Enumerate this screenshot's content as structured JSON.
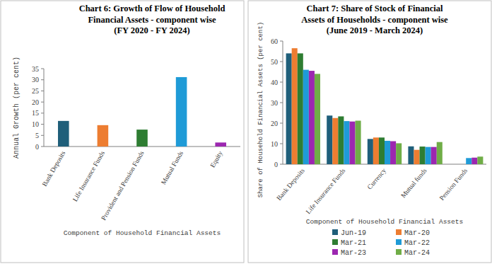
{
  "chart_data": [
    {
      "type": "bar",
      "title": "Chart 6: Growth of Flow of Household\nFinancial Assets - component wise\n(FY 2020 - FY 2024)",
      "x_label": "Component of Household Financial Assets",
      "y_label": "Annual Growth (per cent)",
      "categories": [
        "Bank Deposits",
        "Life Insurance Funds",
        "Provident and Pension Funds",
        "Mutual Funds",
        "Equity"
      ],
      "values": [
        11.5,
        9.6,
        7.6,
        31.2,
        1.8
      ],
      "colors": [
        "#1f5f7a",
        "#ed7d31",
        "#2e7d32",
        "#1f9bd7",
        "#9c27b0"
      ],
      "ylim": [
        0,
        35
      ],
      "yticks": [
        0,
        5,
        10,
        15,
        20,
        25,
        30,
        35
      ],
      "grid": false
    },
    {
      "type": "bar",
      "title": "Chart 7: Share of Stock of Financial\nAssets of Households - component wise\n(June 2019 - March 2024)",
      "x_label": "Component of Household Financial Assets",
      "y_label": "Share of Household Financial Assets (per cent)",
      "categories": [
        "Bank Deposits",
        "Life Insurance Funds",
        "Currency",
        "Mutual funds",
        "Pension Funds"
      ],
      "series": [
        {
          "name": "Jun-19",
          "color": "#1f5f7a",
          "values": [
            54,
            23.7,
            12.3,
            8.7,
            null
          ]
        },
        {
          "name": "Mar-20",
          "color": "#ed7d31",
          "values": [
            56.5,
            22.5,
            13,
            7,
            null
          ]
        },
        {
          "name": "Mar-21",
          "color": "#2e7d32",
          "values": [
            54,
            23.3,
            13,
            8.6,
            null
          ]
        },
        {
          "name": "Mar-22",
          "color": "#1f9bd7",
          "values": [
            46,
            21,
            11.4,
            8.4,
            3
          ]
        },
        {
          "name": "Mar-23",
          "color": "#9c27b0",
          "values": [
            45.5,
            20.8,
            11.2,
            8.4,
            3.2
          ]
        },
        {
          "name": "Mar-24",
          "color": "#70ad47",
          "values": [
            44,
            21.2,
            10.2,
            10.8,
            3.7
          ]
        }
      ],
      "ylim": [
        0,
        60
      ],
      "yticks": [
        0,
        10,
        20,
        30,
        40,
        50,
        60
      ],
      "grid": false,
      "legend": "bottom"
    }
  ]
}
